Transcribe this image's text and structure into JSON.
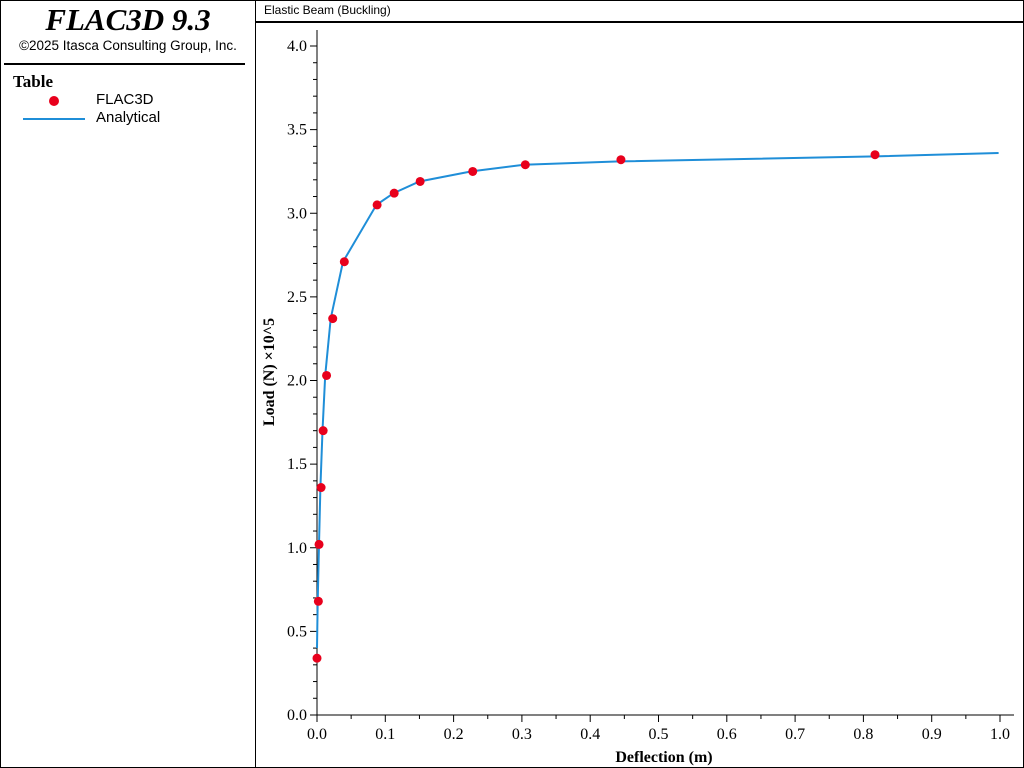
{
  "app": {
    "title": "FLAC3D 9.3",
    "copyright": "©2025 Itasca Consulting Group, Inc."
  },
  "legend": {
    "heading": "Table",
    "entries": [
      {
        "label": "FLAC3D",
        "marker": "dot",
        "color": "#e8001c"
      },
      {
        "label": "Analytical",
        "marker": "line",
        "color": "#1f8ed8"
      }
    ]
  },
  "plot": {
    "title": "Elastic Beam (Buckling)"
  },
  "chart_data": {
    "type": "line",
    "title": "Elastic Beam (Buckling)",
    "xlabel": "Deflection (m)",
    "ylabel": "Load (N) ×10^5",
    "xlim": [
      0.0,
      1.0
    ],
    "ylim": [
      0.0,
      4.1
    ],
    "x_ticks": [
      "0.0",
      "0.1",
      "0.2",
      "0.3",
      "0.4",
      "0.5",
      "0.6",
      "0.7",
      "0.8",
      "0.9",
      "1.0"
    ],
    "y_ticks": [
      "0.0",
      "0.5",
      "1.0",
      "1.5",
      "2.0",
      "2.5",
      "3.0",
      "3.5",
      "4.0"
    ],
    "grid": false,
    "legend_position": "left panel",
    "series": [
      {
        "name": "FLAC3D",
        "style": "scatter",
        "color": "#e8001c",
        "x": [
          0.0,
          0.002,
          0.003,
          0.006,
          0.009,
          0.014,
          0.023,
          0.04,
          0.088,
          0.113,
          0.151,
          0.228,
          0.305,
          0.445,
          0.817
        ],
        "y": [
          0.34,
          0.68,
          1.02,
          1.36,
          1.7,
          2.03,
          2.37,
          2.71,
          3.05,
          3.12,
          3.19,
          3.25,
          3.29,
          3.32,
          3.35
        ]
      },
      {
        "name": "Analytical",
        "style": "line",
        "color": "#1f8ed8",
        "x": [
          0.0,
          0.001,
          0.003,
          0.005,
          0.008,
          0.012,
          0.02,
          0.038,
          0.087,
          0.112,
          0.15,
          0.226,
          0.303,
          0.443,
          0.818,
          0.998
        ],
        "y": [
          0.4,
          0.68,
          1.02,
          1.36,
          1.7,
          2.03,
          2.37,
          2.71,
          3.05,
          3.12,
          3.19,
          3.25,
          3.29,
          3.31,
          3.34,
          3.36
        ]
      }
    ]
  }
}
